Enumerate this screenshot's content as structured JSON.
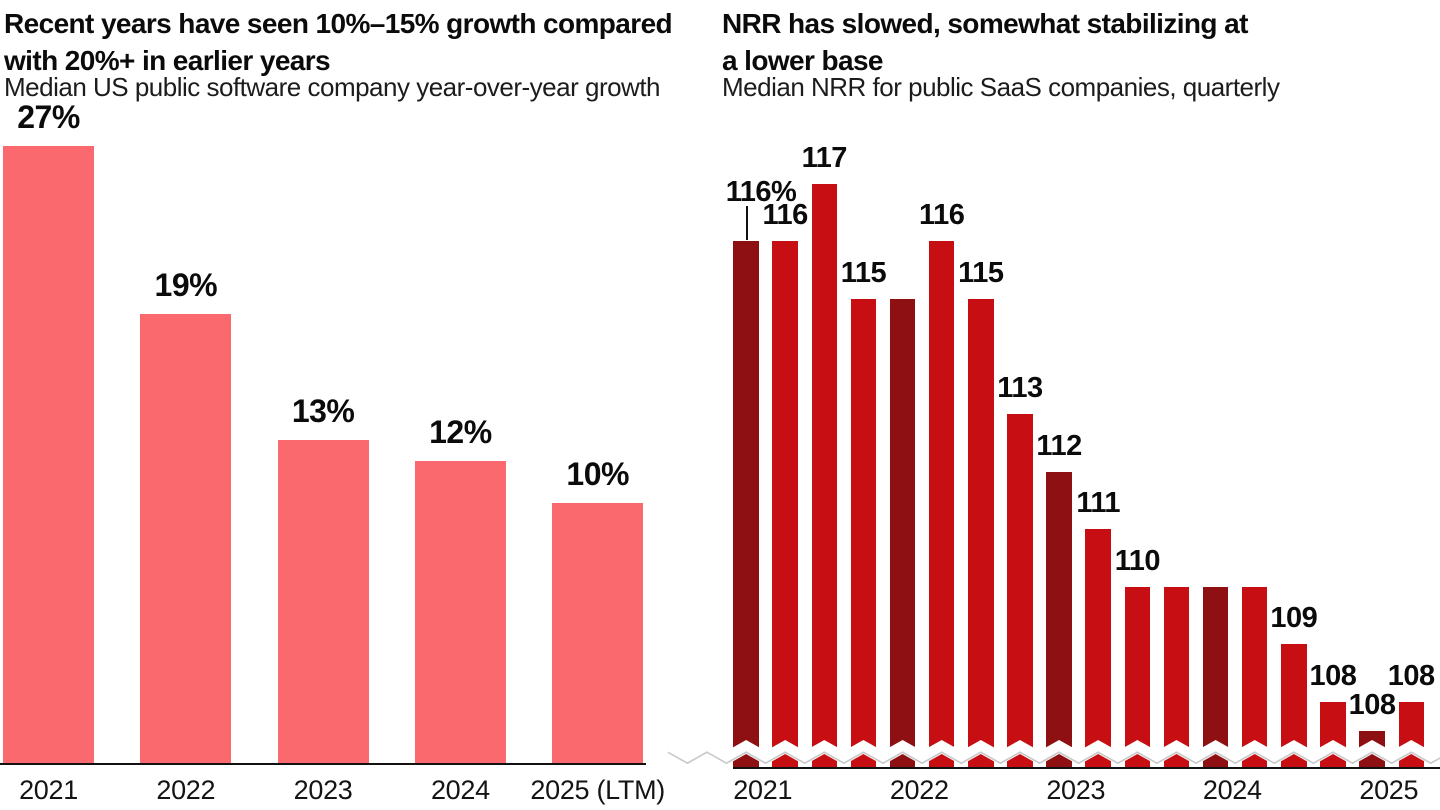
{
  "page": {
    "background": "#ffffff"
  },
  "charts": [
    {
      "id": "yoy-growth",
      "title_lines": [
        "Recent years have seen 10%–15% growth compared",
        "with 20%+ in earlier years"
      ],
      "subtitle": "Median US public software company year-over-year growth",
      "chart_data": {
        "type": "bar",
        "categories": [
          "2021",
          "2022",
          "2023",
          "2024",
          "2025 (LTM)"
        ],
        "values": [
          27,
          19,
          13,
          12,
          10
        ],
        "value_labels": [
          "27%",
          "19%",
          "13%",
          "12%",
          "10%"
        ],
        "unit": "percent year-over-year growth",
        "bar_color": "#FA696E",
        "axis_line_color": "#111111",
        "ylim": [
          0,
          30
        ],
        "grid": false,
        "legend": false
      }
    },
    {
      "id": "nrr-quarterly",
      "title_lines": [
        "NRR has slowed, somewhat stabilizing at",
        "a lower base"
      ],
      "subtitle": "Median NRR for public SaaS companies, quarterly",
      "chart_data": {
        "type": "bar",
        "x_axis_labels": [
          "2021",
          "2022",
          "2023",
          "2024",
          "2025"
        ],
        "unit": "percent net revenue retention",
        "y_axis_broken": true,
        "colors": {
          "quarter_bar": "#C70F13",
          "year_start_bar": "#8E1012"
        },
        "points": [
          {
            "period": "2021 Q1",
            "value": 116,
            "label": "116%",
            "dark": true,
            "callout": true
          },
          {
            "period": "2021 Q2",
            "value": 116,
            "label": "116",
            "dark": false
          },
          {
            "period": "2021 Q3",
            "value": 117,
            "label": "117",
            "dark": false
          },
          {
            "period": "2021 Q4",
            "value": 115,
            "label": "115",
            "dark": false
          },
          {
            "period": "2022 Q1",
            "value": 115,
            "label": "",
            "dark": true
          },
          {
            "period": "2022 Q2",
            "value": 116,
            "label": "116",
            "dark": false
          },
          {
            "period": "2022 Q3",
            "value": 115,
            "label": "115",
            "dark": false
          },
          {
            "period": "2022 Q4",
            "value": 113,
            "label": "113",
            "dark": false
          },
          {
            "period": "2023 Q1",
            "value": 112,
            "label": "112",
            "dark": true
          },
          {
            "period": "2023 Q2",
            "value": 111,
            "label": "111",
            "dark": false
          },
          {
            "period": "2023 Q3",
            "value": 110,
            "label": "110",
            "dark": false
          },
          {
            "period": "2023 Q4",
            "value": 110,
            "label": "",
            "dark": false
          },
          {
            "period": "2024 Q1",
            "value": 110,
            "label": "",
            "dark": true
          },
          {
            "period": "2024 Q2",
            "value": 110,
            "label": "",
            "dark": false
          },
          {
            "period": "2024 Q3",
            "value": 109,
            "label": "109",
            "dark": false
          },
          {
            "period": "2024 Q4",
            "value": 108,
            "label": "108",
            "dark": false
          },
          {
            "period": "2025 Q1",
            "value": 108,
            "plot_value": 107.5,
            "label": "108",
            "dark": true
          },
          {
            "period": "2025 Q2",
            "value": 108,
            "label": "108",
            "dark": false
          }
        ]
      }
    }
  ]
}
